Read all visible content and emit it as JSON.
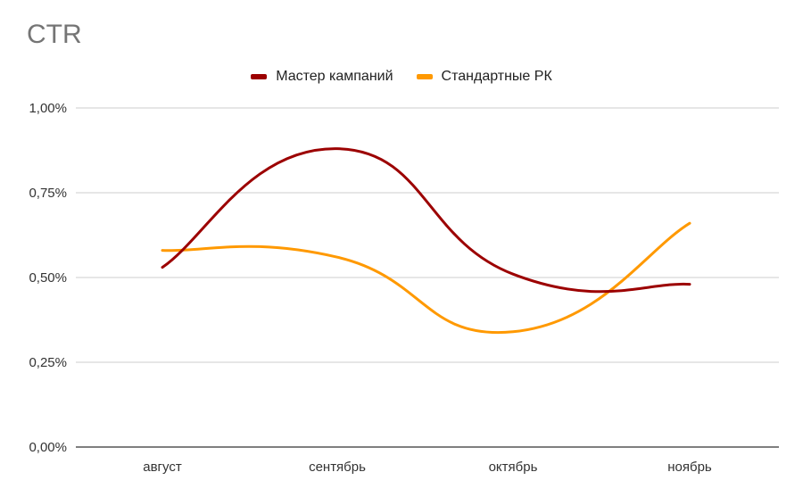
{
  "chart_data": {
    "type": "line",
    "title": "CTR",
    "categories": [
      "август",
      "сентябрь",
      "октябрь",
      "ноябрь"
    ],
    "series": [
      {
        "name": "Мастер кампаний",
        "color": "#9c0000",
        "values": [
          0.53,
          0.88,
          0.51,
          0.48
        ]
      },
      {
        "name": "Стандартные РК",
        "color": "#ff9900",
        "values": [
          0.58,
          0.56,
          0.34,
          0.66
        ]
      }
    ],
    "yticks": [
      "0,00%",
      "0,25%",
      "0,50%",
      "0,75%",
      "1,00%"
    ],
    "ylim": [
      0,
      1.0
    ],
    "smooth": true,
    "grid": true,
    "legend_position": "top-center",
    "gridline_color": "#cccccc",
    "axis_color": "#333333"
  }
}
